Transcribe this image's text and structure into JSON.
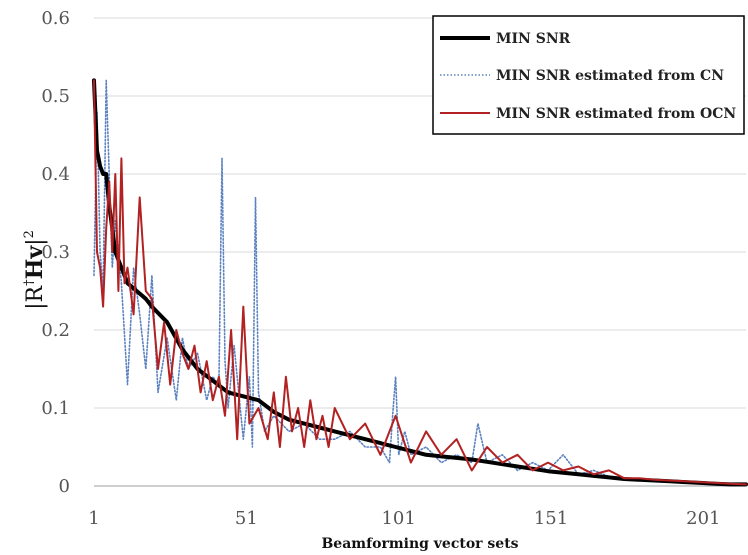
{
  "chart_data": {
    "type": "line",
    "title": "",
    "xlabel": "Beamforming vector sets",
    "ylabel": {
      "main": "|R",
      "sup_dagger": "†",
      "hv": "Hv",
      "tail": "|",
      "sup2": "2"
    },
    "xlim": [
      1,
      215
    ],
    "ylim": [
      0,
      0.6
    ],
    "xticks": [
      1,
      51,
      101,
      151,
      201
    ],
    "yticks": [
      0,
      0.1,
      0.2,
      0.3,
      0.4,
      0.5,
      0.6
    ],
    "grid": true,
    "legend_position": "top-right",
    "series": [
      {
        "name": "MIN SNR",
        "style": "solid-thick",
        "color": "#000000",
        "x": [
          1,
          2,
          3,
          4,
          5,
          6,
          7,
          8,
          10,
          12,
          15,
          18,
          20,
          25,
          30,
          35,
          40,
          45,
          50,
          55,
          60,
          65,
          70,
          75,
          80,
          85,
          90,
          95,
          100,
          105,
          110,
          115,
          120,
          125,
          130,
          135,
          140,
          145,
          150,
          155,
          160,
          165,
          170,
          175,
          180,
          185,
          190,
          195,
          200,
          205,
          210,
          215
        ],
        "values": [
          0.52,
          0.43,
          0.41,
          0.4,
          0.4,
          0.36,
          0.33,
          0.3,
          0.28,
          0.26,
          0.25,
          0.24,
          0.23,
          0.21,
          0.175,
          0.15,
          0.135,
          0.12,
          0.115,
          0.11,
          0.095,
          0.085,
          0.08,
          0.075,
          0.07,
          0.065,
          0.06,
          0.055,
          0.05,
          0.045,
          0.04,
          0.038,
          0.036,
          0.034,
          0.031,
          0.028,
          0.025,
          0.022,
          0.019,
          0.017,
          0.015,
          0.013,
          0.011,
          0.009,
          0.008,
          0.007,
          0.006,
          0.005,
          0.004,
          0.003,
          0.002,
          0.002
        ]
      },
      {
        "name": "MIN SNR estimated from CN",
        "style": "dotted",
        "color": "#5b82c0",
        "x": [
          1,
          2,
          3,
          4,
          5,
          6,
          7,
          8,
          10,
          12,
          14,
          16,
          18,
          20,
          22,
          25,
          28,
          30,
          32,
          35,
          38,
          40,
          42,
          43,
          44,
          45,
          47,
          50,
          52,
          53,
          54,
          55,
          57,
          60,
          65,
          70,
          75,
          80,
          85,
          90,
          95,
          98,
          99,
          100,
          101,
          103,
          105,
          110,
          115,
          120,
          125,
          127,
          130,
          135,
          140,
          145,
          150,
          155,
          160,
          165,
          170,
          175,
          180,
          185,
          190,
          195,
          200,
          205,
          210,
          215
        ],
        "values": [
          0.27,
          0.48,
          0.3,
          0.25,
          0.52,
          0.4,
          0.28,
          0.34,
          0.26,
          0.13,
          0.28,
          0.22,
          0.15,
          0.27,
          0.12,
          0.19,
          0.11,
          0.19,
          0.15,
          0.17,
          0.11,
          0.14,
          0.13,
          0.42,
          0.16,
          0.1,
          0.18,
          0.06,
          0.14,
          0.05,
          0.37,
          0.12,
          0.07,
          0.09,
          0.07,
          0.08,
          0.06,
          0.06,
          0.07,
          0.05,
          0.05,
          0.03,
          0.09,
          0.14,
          0.04,
          0.07,
          0.04,
          0.05,
          0.03,
          0.04,
          0.03,
          0.08,
          0.03,
          0.04,
          0.02,
          0.03,
          0.02,
          0.04,
          0.015,
          0.02,
          0.012,
          0.01,
          0.008,
          0.007,
          0.006,
          0.005,
          0.004,
          0.003,
          0.002,
          0.002
        ]
      },
      {
        "name": "MIN SNR estimated from OCN",
        "style": "solid",
        "color": "#b22222",
        "x": [
          1,
          2,
          3,
          4,
          5,
          6,
          7,
          8,
          9,
          10,
          11,
          12,
          14,
          16,
          18,
          20,
          22,
          24,
          26,
          28,
          30,
          32,
          34,
          36,
          38,
          40,
          42,
          44,
          46,
          48,
          50,
          52,
          55,
          58,
          60,
          62,
          64,
          66,
          68,
          70,
          72,
          74,
          76,
          78,
          80,
          85,
          90,
          95,
          100,
          105,
          110,
          115,
          120,
          125,
          130,
          135,
          140,
          145,
          150,
          155,
          160,
          165,
          170,
          175,
          180,
          185,
          190,
          195,
          200,
          205,
          210,
          215
        ],
        "values": [
          0.52,
          0.3,
          0.28,
          0.23,
          0.33,
          0.39,
          0.3,
          0.4,
          0.25,
          0.42,
          0.26,
          0.28,
          0.22,
          0.37,
          0.25,
          0.24,
          0.15,
          0.21,
          0.13,
          0.2,
          0.17,
          0.15,
          0.18,
          0.12,
          0.16,
          0.11,
          0.14,
          0.09,
          0.2,
          0.06,
          0.23,
          0.08,
          0.1,
          0.06,
          0.12,
          0.05,
          0.14,
          0.07,
          0.1,
          0.05,
          0.11,
          0.06,
          0.09,
          0.05,
          0.1,
          0.06,
          0.08,
          0.04,
          0.09,
          0.03,
          0.07,
          0.04,
          0.06,
          0.02,
          0.05,
          0.03,
          0.04,
          0.02,
          0.03,
          0.02,
          0.025,
          0.015,
          0.02,
          0.01,
          0.01,
          0.008,
          0.007,
          0.006,
          0.005,
          0.004,
          0.003,
          0.002
        ]
      }
    ]
  }
}
